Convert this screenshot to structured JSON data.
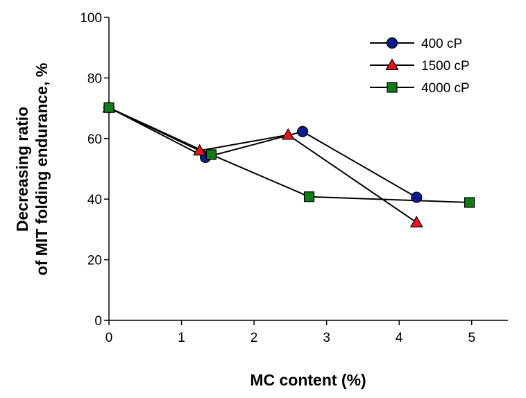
{
  "chart_data": {
    "type": "line",
    "title": "",
    "xlabel": "MC content (%)",
    "ylabel_lines": [
      "Decreasing ratio",
      "of MIT folding endurance, %"
    ],
    "xlim": [
      0,
      5.5
    ],
    "ylim": [
      0,
      100
    ],
    "x_ticks": [
      0,
      1,
      2,
      3,
      4,
      5
    ],
    "y_ticks": [
      0,
      20,
      40,
      60,
      80,
      100
    ],
    "grid": false,
    "legend_position": "top-right",
    "series": [
      {
        "name": "400 cP",
        "marker": "circle",
        "color": "#0a1c8c",
        "x": [
          0,
          1.33,
          2.67,
          4.24
        ],
        "y": [
          70.2,
          53.8,
          62.3,
          40.6
        ]
      },
      {
        "name": "1500 cP",
        "marker": "triangle",
        "color": "#e8141e",
        "x": [
          0,
          1.25,
          2.47,
          4.24
        ],
        "y": [
          70.2,
          56.0,
          61.2,
          32.3
        ]
      },
      {
        "name": "4000 cP",
        "marker": "square",
        "color": "#127a18",
        "x": [
          0,
          1.41,
          2.76,
          4.97
        ],
        "y": [
          70.2,
          54.7,
          40.8,
          38.9
        ]
      }
    ]
  }
}
